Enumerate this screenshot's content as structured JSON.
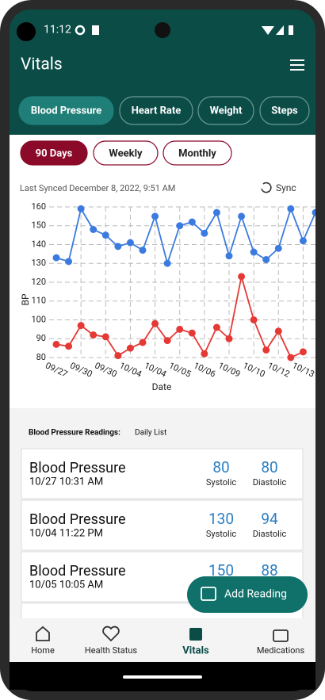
{
  "status_bar": {
    "time": "11:12"
  },
  "header": {
    "title": "Vitals"
  },
  "tabs": [
    "Blood Pressure",
    "Heart Rate",
    "Weight",
    "Steps"
  ],
  "filters": [
    "90 Days",
    "Weekly",
    "Monthly"
  ],
  "sync": {
    "last_synced": "Last Synced December 8, 2022, 9:51 AM",
    "button": "Sync"
  },
  "chart_data": {
    "type": "line",
    "xlabel": "Date",
    "ylabel": "BP",
    "categories": [
      "09/27",
      null,
      "09/30",
      null,
      "09/30",
      null,
      "10/04",
      null,
      "10/04",
      null,
      "10/05",
      null,
      "10/06",
      null,
      "10/09",
      null,
      "10/10",
      null,
      "10/12",
      null,
      "10/13",
      null
    ],
    "series": [
      {
        "color": "#3b7be0",
        "values": [
          133,
          131,
          159,
          148,
          145,
          139,
          141,
          137,
          155,
          130,
          150,
          152,
          146,
          157,
          134,
          155,
          136,
          132,
          138,
          159,
          142,
          157
        ]
      },
      {
        "color": "#e53935",
        "values": [
          87,
          86,
          97,
          92,
          91,
          81,
          85,
          88,
          98,
          89,
          95,
          93,
          82,
          96,
          90,
          123,
          100,
          84,
          94,
          80,
          83,
          null
        ]
      }
    ],
    "ylim": [
      80,
      160
    ],
    "yticks": [
      80,
      90,
      100,
      110,
      120,
      130,
      140,
      150,
      160
    ],
    "grid": true
  },
  "readings": {
    "heading": "Blood Pressure Readings:",
    "subheading": "Daily List",
    "items": [
      {
        "title": "Blood Pressure",
        "date": "10/27 10:31 AM",
        "systolic": 80,
        "diastolic": 80,
        "systolic_label": "Systolic",
        "diastolic_label": "Diastolic"
      },
      {
        "title": "Blood Pressure",
        "date": "10/04 11:22 PM",
        "systolic": 130,
        "diastolic": 94,
        "systolic_label": "Systolic",
        "diastolic_label": "Diastolic"
      },
      {
        "title": "Blood Pressure",
        "date": "10/05 10:05 AM",
        "systolic": 150,
        "diastolic": 88
      }
    ]
  },
  "fab": "Add Reading",
  "nav": [
    "Home",
    "Health Status",
    "Vitals",
    "Medications"
  ]
}
